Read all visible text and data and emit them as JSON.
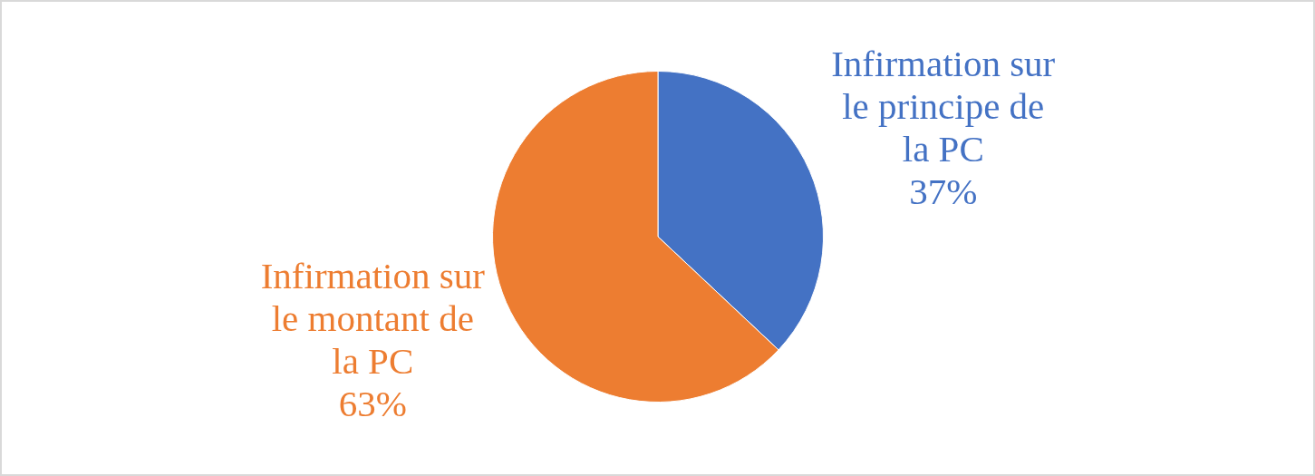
{
  "chart_data": {
    "type": "pie",
    "categories": [
      "Infirmation sur le principe de la PC",
      "Infirmation sur le montant de la PC"
    ],
    "values": [
      37,
      63
    ],
    "colors": [
      "#4472c4",
      "#ed7d31"
    ],
    "value_labels": [
      "37%",
      "63%"
    ]
  }
}
